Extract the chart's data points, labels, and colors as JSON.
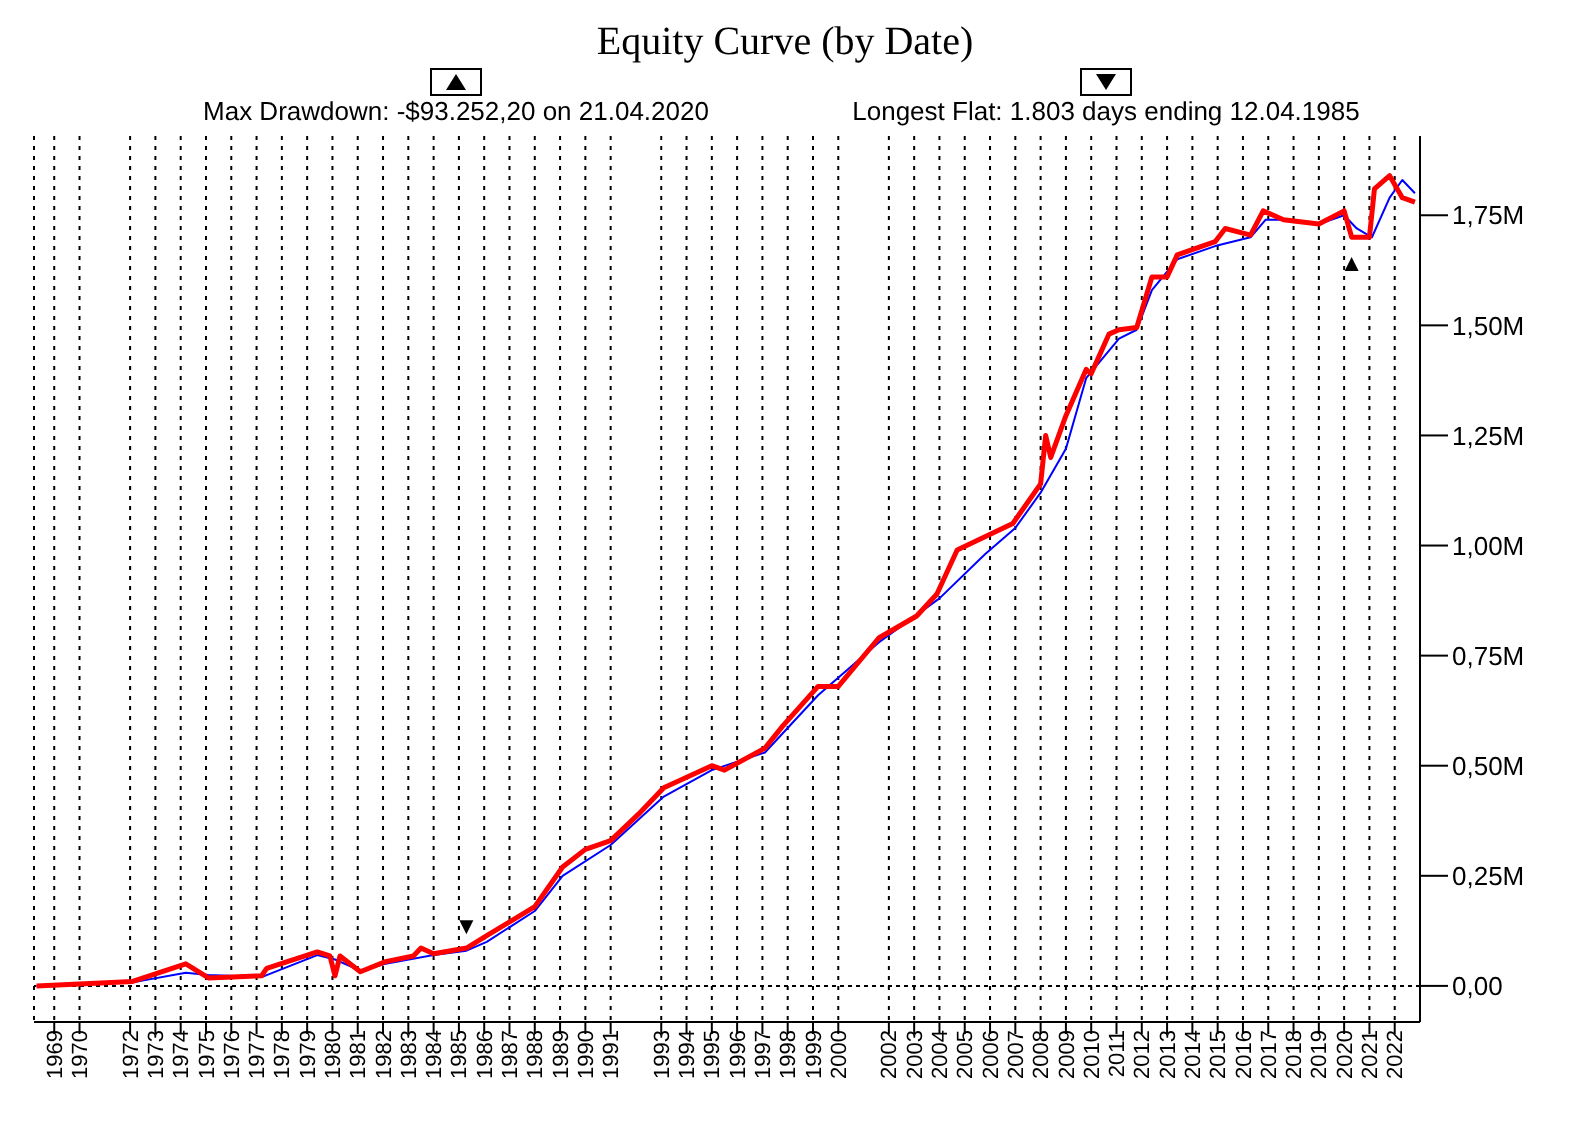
{
  "chart_data": {
    "type": "line",
    "title": "Equity Curve (by Date)",
    "annotations": [
      "Max Drawdown: -$93.252,20 on 21.04.2020",
      "Longest Flat: 1.803 days ending 12.04.1985",
      {
        "text": "▲",
        "x": 2020.3,
        "y": 1.68
      },
      {
        "text": "▼",
        "x": 1985.3,
        "y": 0.1
      }
    ],
    "series": [
      {
        "color": "#0000ff",
        "x": [
          1968.3,
          1972.1,
          1974.2,
          1975.1,
          1977.2,
          1979.4,
          1980.1,
          1981.1,
          1982.1,
          1984.0,
          1985.3,
          1986.1,
          1988.0,
          1989.1,
          1991.0,
          1993.1,
          1995.0,
          1997.1,
          1999.2,
          2001.6,
          2004.0,
          2005.8,
          2007.0,
          2008.0,
          2009.0,
          2009.8,
          2011.1,
          2011.8,
          2012.4,
          2013.4,
          2014.9,
          2016.3,
          2016.9,
          2017.6,
          2019.0,
          2020.0,
          2020.5,
          2021.1,
          2021.8,
          2022.3,
          2022.8
        ],
        "values": [
          0,
          0.008,
          0.03,
          0.025,
          0.02,
          0.07,
          0.06,
          0.035,
          0.05,
          0.07,
          0.08,
          0.1,
          0.17,
          0.25,
          0.32,
          0.43,
          0.49,
          0.53,
          0.66,
          0.78,
          0.88,
          0.98,
          1.04,
          1.12,
          1.22,
          1.38,
          1.47,
          1.49,
          1.58,
          1.65,
          1.68,
          1.7,
          1.74,
          1.74,
          1.73,
          1.75,
          1.72,
          1.7,
          1.79,
          1.83,
          1.8
        ]
      },
      {
        "color": "#ff0000",
        "x": [
          1968.3,
          1972.1,
          1974.2,
          1975.1,
          1977.2,
          1977.4,
          1979.4,
          1979.9,
          1980.1,
          1980.3,
          1981.1,
          1982.1,
          1983.2,
          1983.5,
          1984.0,
          1985.3,
          1986.1,
          1988.0,
          1989.1,
          1990.0,
          1991.0,
          1992.1,
          1993.1,
          1995.0,
          1995.5,
          1997.1,
          1997.8,
          1999.2,
          2000.0,
          2001.6,
          2003.1,
          2003.9,
          2004.7,
          2005.8,
          2006.9,
          2008.0,
          2008.2,
          2008.4,
          2009.0,
          2009.8,
          2010.0,
          2010.7,
          2011.1,
          2011.8,
          2012.4,
          2013.0,
          2013.4,
          2014.9,
          2015.3,
          2016.3,
          2016.8,
          2017.6,
          2019.0,
          2020.0,
          2020.3,
          2021.0,
          2021.2,
          2021.8,
          2022.3,
          2022.8
        ],
        "values": [
          0,
          0.01,
          0.05,
          0.018,
          0.023,
          0.04,
          0.077,
          0.068,
          0.023,
          0.068,
          0.032,
          0.055,
          0.068,
          0.086,
          0.073,
          0.086,
          0.114,
          0.18,
          0.27,
          0.31,
          0.33,
          0.39,
          0.45,
          0.5,
          0.49,
          0.54,
          0.59,
          0.68,
          0.68,
          0.79,
          0.84,
          0.89,
          0.99,
          1.02,
          1.05,
          1.14,
          1.25,
          1.2,
          1.295,
          1.4,
          1.39,
          1.48,
          1.49,
          1.495,
          1.61,
          1.61,
          1.66,
          1.69,
          1.72,
          1.705,
          1.76,
          1.74,
          1.73,
          1.76,
          1.7,
          1.7,
          1.81,
          1.84,
          1.79,
          1.78
        ]
      }
    ],
    "xlim": [
      1968.2,
      2023
    ],
    "xticks": [
      1969,
      1970,
      1972,
      1973,
      1974,
      1975,
      1976,
      1977,
      1978,
      1979,
      1980,
      1981,
      1982,
      1983,
      1984,
      1985,
      1986,
      1987,
      1988,
      1989,
      1990,
      1991,
      1993,
      1994,
      1995,
      1996,
      1997,
      1998,
      1999,
      2000,
      2002,
      2003,
      2004,
      2005,
      2006,
      2007,
      2008,
      2009,
      2010,
      2011,
      2012,
      2013,
      2014,
      2015,
      2016,
      2017,
      2018,
      2019,
      2020,
      2021,
      2022
    ],
    "ylim": [
      -0.082,
      1.93
    ],
    "yticks": [
      {
        "value": 0,
        "label": "0,00"
      },
      {
        "value": 0.25,
        "label": "0,25M"
      },
      {
        "value": 0.5,
        "label": "0,50M"
      },
      {
        "value": 0.75,
        "label": "0,75M"
      },
      {
        "value": 1,
        "label": "1,00M"
      },
      {
        "value": 1.25,
        "label": "1,25M"
      },
      {
        "value": 1.5,
        "label": "1,50M"
      },
      {
        "value": 1.75,
        "label": "1,75M"
      }
    ],
    "ref_lines": [
      {
        "axis": "y",
        "value": 0,
        "color": "#000000",
        "line_style": "dotted"
      }
    ],
    "grid": "x",
    "legend": false,
    "marker": "none",
    "line_style": "solid"
  }
}
